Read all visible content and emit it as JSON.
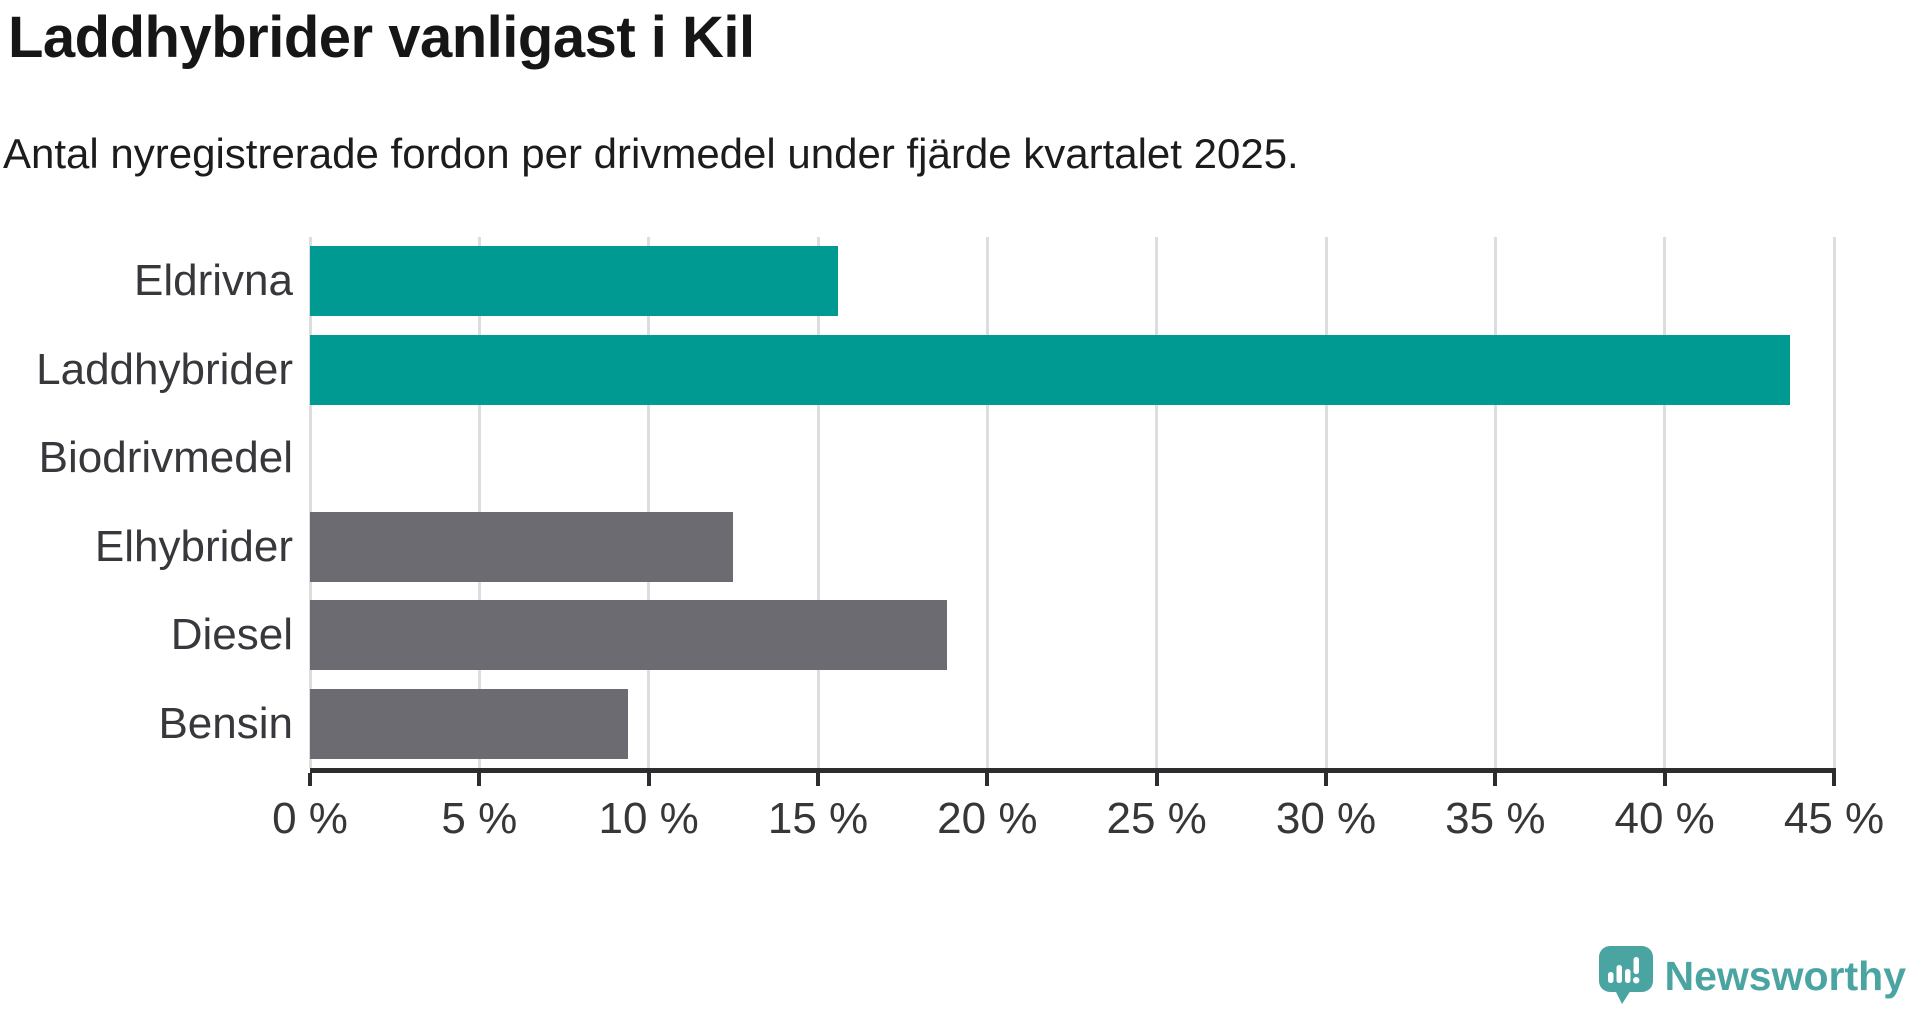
{
  "header": {
    "title": "Laddhybrider vanligast i Kil",
    "subtitle": "Antal nyregistrerade fordon per drivmedel under fjärde kvartalet 2025."
  },
  "chart_data": {
    "type": "bar",
    "orientation": "horizontal",
    "title": "Laddhybrider vanligast i Kil",
    "xlabel": "",
    "ylabel": "",
    "unit": "%",
    "categories": [
      "Eldrivna",
      "Laddhybrider",
      "Biodrivmedel",
      "Elhybrider",
      "Diesel",
      "Bensin"
    ],
    "values": [
      15.6,
      43.7,
      0,
      12.5,
      18.8,
      9.4
    ],
    "bar_colors": [
      "#009a93",
      "#009a93",
      "#6c6b71",
      "#6c6b71",
      "#6c6b71",
      "#6c6b71"
    ],
    "highlight_color": "#009a93",
    "default_color": "#6c6b71",
    "xlim": [
      0,
      45
    ],
    "x_ticks": [
      {
        "value": 0,
        "label": "0 %"
      },
      {
        "value": 5,
        "label": "5 %"
      },
      {
        "value": 10,
        "label": "10 %"
      },
      {
        "value": 15,
        "label": "15 %"
      },
      {
        "value": 20,
        "label": "20 %"
      },
      {
        "value": 25,
        "label": "25 %"
      },
      {
        "value": 30,
        "label": "30 %"
      },
      {
        "value": 35,
        "label": "35 %"
      },
      {
        "value": 40,
        "label": "40 %"
      },
      {
        "value": 45,
        "label": "45 %"
      }
    ],
    "grid": "vertical",
    "legend": "none"
  },
  "branding": {
    "name": "Newsworthy",
    "color": "#4aa5a2"
  }
}
